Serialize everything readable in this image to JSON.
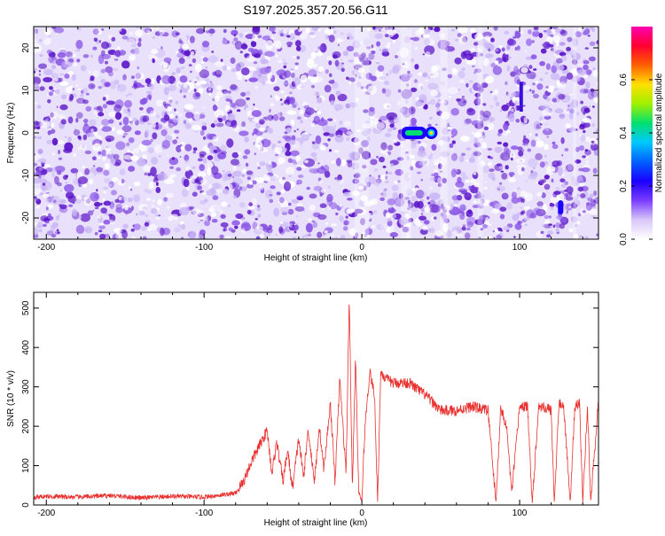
{
  "title": "S197.2025.357.20.56.G11",
  "colors": {
    "snr_line": "#e8312f",
    "speckle_dark": "#5a14c8",
    "speckle_mid": "#8a55e6",
    "speckle_light": "#c9b6f5",
    "colorbar": [
      "#ffffff",
      "#d8c8f8",
      "#7a3cff",
      "#1a00ff",
      "#0060ff",
      "#00c8ff",
      "#00e070",
      "#a0f000",
      "#ffe000",
      "#ff6000",
      "#ff0030",
      "#ff00b0"
    ]
  },
  "chart_data": [
    {
      "type": "heatmap",
      "xlabel": "Height of straight line (km)",
      "ylabel": "Frequency (Hz)",
      "xlim": [
        -208,
        150
      ],
      "ylim": [
        -25,
        25
      ],
      "x_ticks": [
        -200,
        -100,
        0,
        100
      ],
      "y_ticks": [
        -20,
        -10,
        0,
        10,
        20
      ],
      "colorbar": {
        "label": "Normalized spectral amplitude",
        "range": [
          0.0,
          0.8
        ],
        "ticks": [
          "0.0",
          "0.2",
          "0.4",
          "0.6"
        ]
      },
      "features": [
        {
          "x": 33,
          "y": 0,
          "amplitude": 0.3
        },
        {
          "x": 44,
          "y": 0,
          "amplitude": 0.45
        },
        {
          "x": 126,
          "y": -17.5,
          "amplitude": 0.2
        }
      ]
    },
    {
      "type": "line",
      "xlabel": "Height of straight line (km)",
      "ylabel": "SNR (10 * v/v)",
      "xlim": [
        -208,
        150
      ],
      "ylim": [
        0,
        540
      ],
      "x_ticks": [
        -200,
        -100,
        0,
        100
      ],
      "y_ticks": [
        0,
        100,
        200,
        300,
        400,
        500
      ],
      "series": [
        {
          "x": [
            -208,
            -200,
            -180,
            -160,
            -140,
            -120,
            -100,
            -90,
            -80,
            -75,
            -70,
            -65,
            -60,
            -57,
            -54,
            -50,
            -47,
            -44,
            -40,
            -37,
            -34,
            -30,
            -27,
            -24,
            -20,
            -17,
            -14,
            -10,
            -8,
            -6,
            -4,
            -2,
            0,
            2,
            5,
            8,
            10,
            12,
            15,
            20,
            30,
            40,
            50,
            60,
            70,
            80,
            85,
            88,
            92,
            95,
            100,
            105,
            108,
            112,
            115,
            120,
            122,
            125,
            128,
            132,
            135,
            138,
            140,
            143,
            145,
            150
          ],
          "y": [
            20,
            22,
            20,
            24,
            18,
            22,
            20,
            25,
            30,
            60,
            110,
            150,
            190,
            80,
            160,
            60,
            140,
            40,
            170,
            70,
            190,
            60,
            200,
            90,
            260,
            60,
            320,
            80,
            530,
            40,
            380,
            30,
            10,
            200,
            340,
            280,
            10,
            340,
            320,
            310,
            310,
            280,
            240,
            240,
            250,
            240,
            5,
            250,
            190,
            30,
            250,
            250,
            5,
            250,
            250,
            240,
            5,
            260,
            250,
            5,
            250,
            260,
            5,
            250,
            10,
            260
          ]
        }
      ]
    }
  ]
}
